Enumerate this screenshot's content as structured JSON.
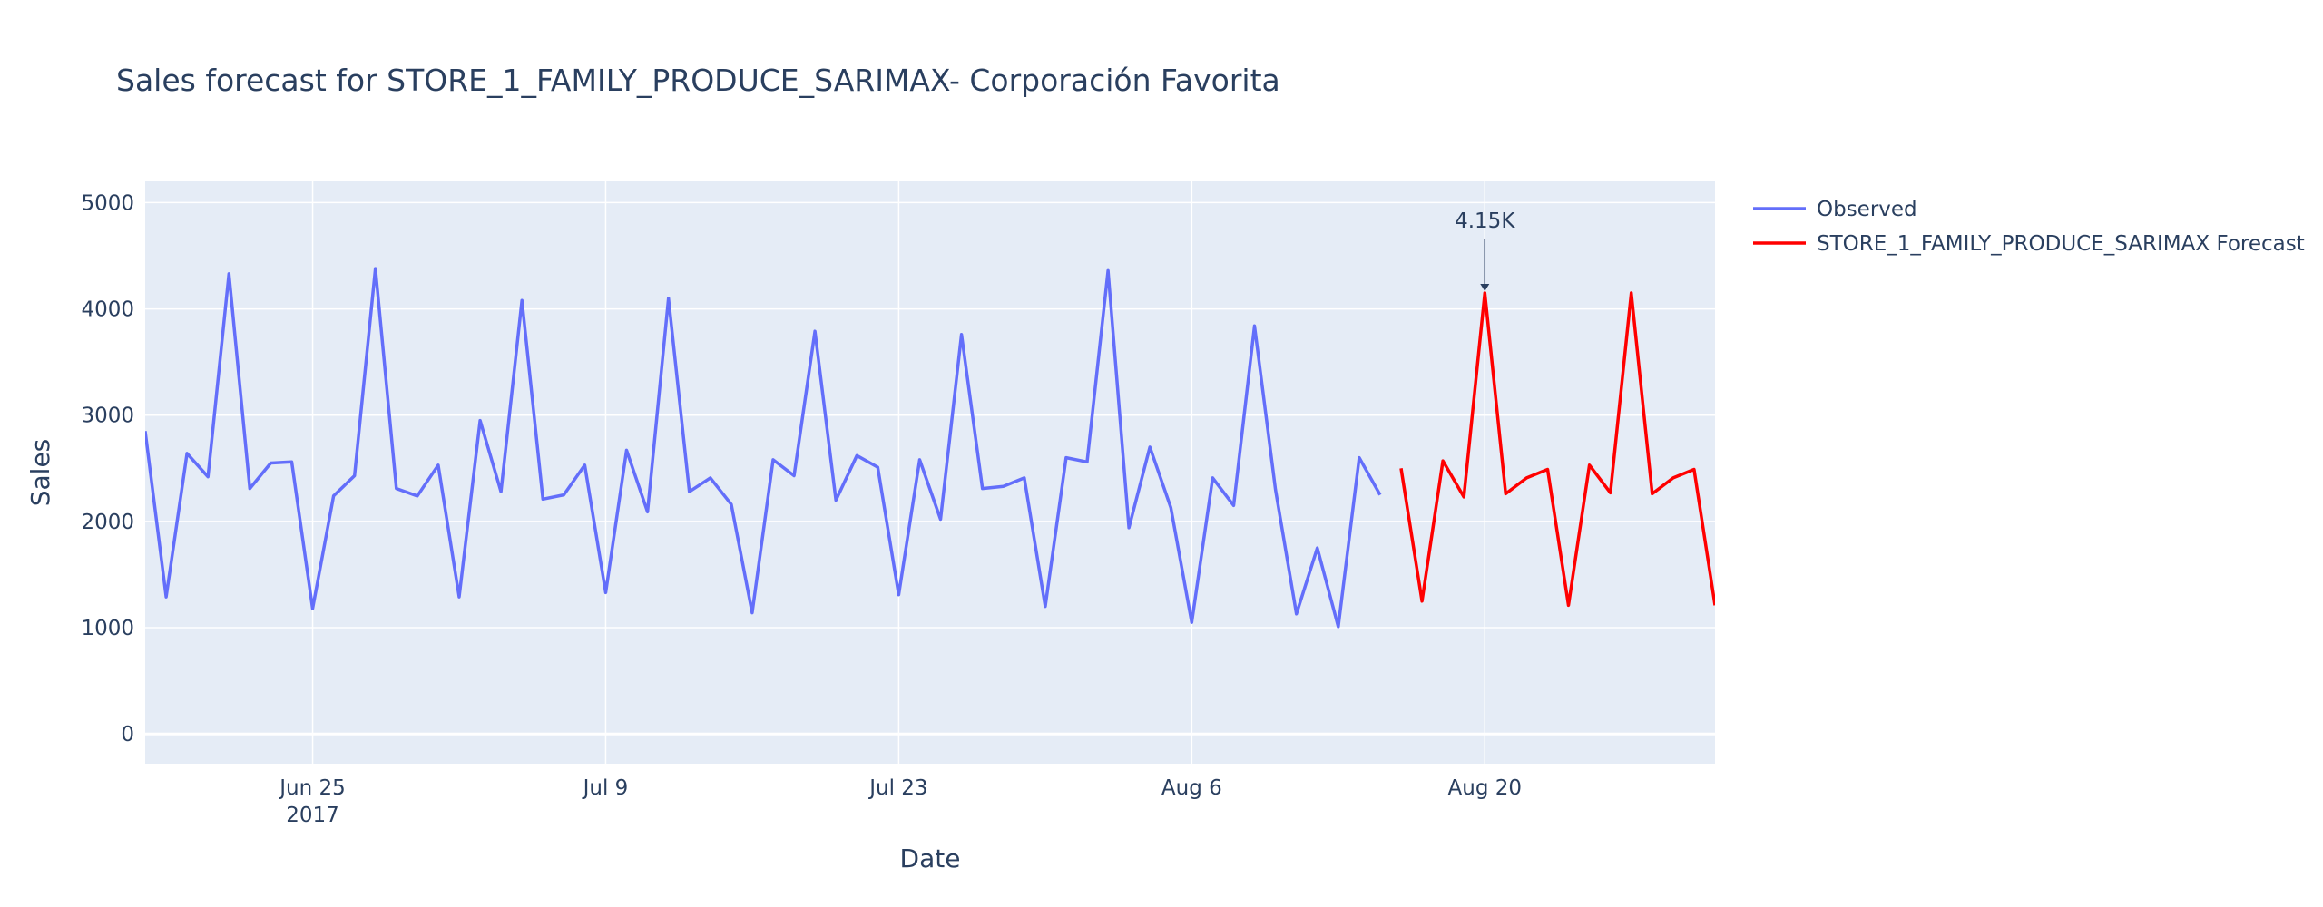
{
  "chart_data": {
    "type": "line",
    "title": "Sales forecast for STORE_1_FAMILY_PRODUCE_SARIMAX- Corporación Favorita",
    "xlabel": "Date",
    "ylabel": "Sales",
    "x_axis": {
      "type": "date",
      "range": [
        "2017-06-17",
        "2017-08-31"
      ],
      "ticks": [
        {
          "date": "2017-06-25",
          "label": "Jun 25",
          "sublabel": "2017"
        },
        {
          "date": "2017-07-09",
          "label": "Jul 9",
          "sublabel": ""
        },
        {
          "date": "2017-07-23",
          "label": "Jul 23",
          "sublabel": ""
        },
        {
          "date": "2017-08-06",
          "label": "Aug 6",
          "sublabel": ""
        },
        {
          "date": "2017-08-20",
          "label": "Aug 20",
          "sublabel": ""
        }
      ]
    },
    "y_axis": {
      "range": [
        -280,
        5200
      ],
      "ticks": [
        0,
        1000,
        2000,
        3000,
        4000,
        5000
      ]
    },
    "grid": true,
    "legend_position": "top-right",
    "series": [
      {
        "name": "Observed",
        "color": "#636efa",
        "start_date": "2017-06-17",
        "values": [
          2850,
          1290,
          2640,
          2420,
          4330,
          2310,
          2550,
          2560,
          1180,
          2240,
          2430,
          4380,
          2310,
          2240,
          2530,
          1290,
          2950,
          2280,
          4080,
          2210,
          2250,
          2530,
          1330,
          2670,
          2090,
          4100,
          2280,
          2410,
          2160,
          1140,
          2580,
          2430,
          3790,
          2200,
          2620,
          2510,
          1310,
          2580,
          2020,
          3760,
          2310,
          2330,
          2410,
          1200,
          2600,
          2560,
          4360,
          1940,
          2700,
          2130,
          1050,
          2410,
          2150,
          3840,
          2300,
          1130,
          1750,
          1010,
          2600,
          2250
        ]
      },
      {
        "name": "STORE_1_FAMILY_PRODUCE_SARIMAX Forecast",
        "color": "#ff0000",
        "start_date": "2017-08-16",
        "values": [
          2500,
          1250,
          2570,
          2230,
          4150,
          2260,
          2410,
          2490,
          1210,
          2530,
          2270,
          4150,
          2260,
          2410,
          2490,
          1210
        ]
      }
    ],
    "annotations": [
      {
        "text": "4.15K",
        "date": "2017-08-20",
        "value": 4150
      }
    ]
  }
}
